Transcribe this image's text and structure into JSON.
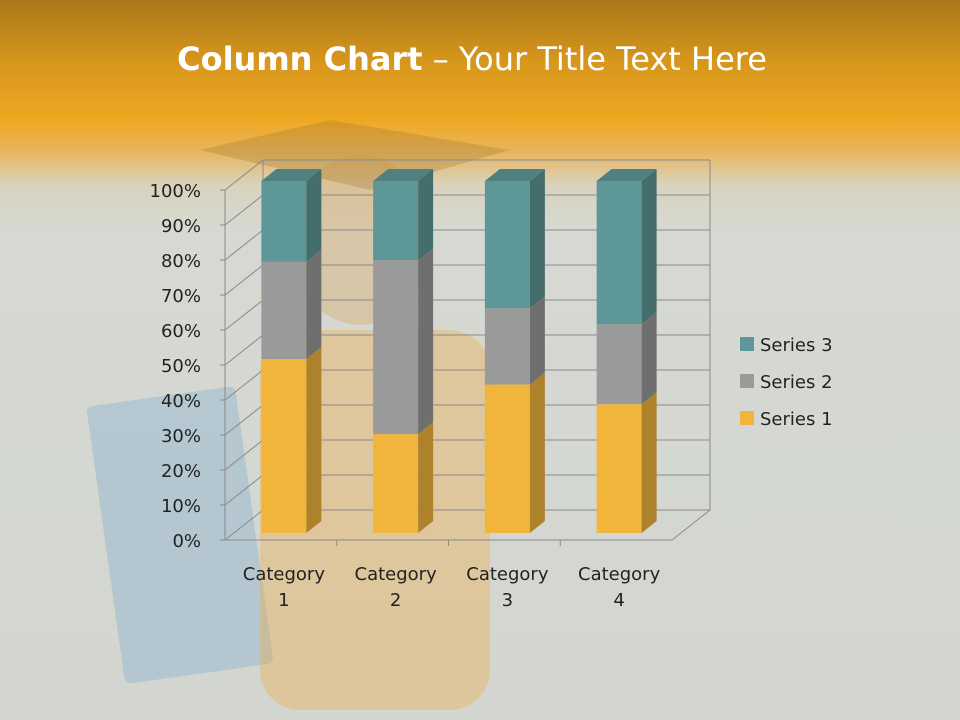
{
  "title": {
    "bold": "Column Chart",
    "rest": " – Your Title Text Here"
  },
  "chart_data": {
    "type": "bar",
    "stacking": "percent",
    "three_d": true,
    "categories": [
      "Category 1",
      "Category 2",
      "Category 3",
      "Category 4"
    ],
    "series": [
      {
        "name": "Series 1",
        "values": [
          4.3,
          2.5,
          3.5,
          4.5
        ],
        "color": "#f2b53c"
      },
      {
        "name": "Series 2",
        "values": [
          2.4,
          4.4,
          1.8,
          2.8
        ],
        "color": "#9a9a9a"
      },
      {
        "name": "Series 3",
        "values": [
          2,
          2,
          3,
          5
        ],
        "color": "#5e9797"
      }
    ],
    "yticks": [
      "0%",
      "10%",
      "20%",
      "30%",
      "40%",
      "50%",
      "60%",
      "70%",
      "80%",
      "90%",
      "100%"
    ],
    "ylim": [
      0,
      100
    ],
    "grid": true,
    "legend": "right"
  }
}
